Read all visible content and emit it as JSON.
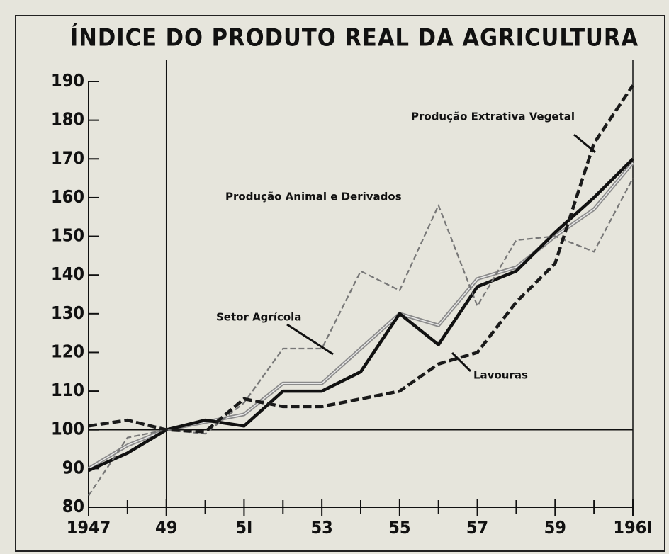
{
  "chart_data": {
    "type": "line",
    "title": "ÍNDICE DO PRODUTO REAL DA AGRICULTURA",
    "x": [
      1947,
      1948,
      1949,
      1950,
      1951,
      1952,
      1953,
      1954,
      1955,
      1956,
      1957,
      1958,
      1959,
      1960,
      1961
    ],
    "series": [
      {
        "name": "Setor Agrícola",
        "color": "#8a8a8a",
        "style": "double",
        "values": [
          90,
          96,
          100,
          102,
          104,
          112,
          112,
          121,
          130,
          127,
          139,
          142,
          150,
          157,
          169
        ]
      },
      {
        "name": "Lavouras",
        "color": "#111111",
        "style": "solid",
        "values": [
          89.5,
          94,
          100,
          102.5,
          101,
          110,
          110,
          115,
          130,
          122,
          137,
          141,
          151,
          160,
          170
        ]
      },
      {
        "name": "Produção Animal e Derivados",
        "color": "#777777",
        "style": "dashed-thin",
        "values": [
          83,
          98,
          100,
          99,
          107,
          121,
          121,
          141,
          136,
          158,
          132,
          149,
          150,
          146,
          165
        ]
      },
      {
        "name": "Produção Extrativa Vegetal",
        "color": "#1a1a1a",
        "style": "dashed-thick",
        "values": [
          101,
          102.5,
          100,
          99.5,
          108,
          106,
          106,
          108,
          110,
          117,
          120,
          133,
          143,
          174,
          189
        ]
      }
    ],
    "xlim": [
      1947,
      1961
    ],
    "ylim": [
      80,
      190
    ],
    "yticks": [
      80,
      90,
      100,
      110,
      120,
      130,
      140,
      150,
      160,
      170,
      180,
      190
    ],
    "xticks": [
      {
        "value": 1947,
        "label": "1947"
      },
      {
        "value": 1949,
        "label": "49"
      },
      {
        "value": 1951,
        "label": "5I"
      },
      {
        "value": 1953,
        "label": "53"
      },
      {
        "value": 1955,
        "label": "55"
      },
      {
        "value": 1957,
        "label": "57"
      },
      {
        "value": 1959,
        "label": "59"
      },
      {
        "value": 1961,
        "label": "196I"
      }
    ],
    "xminor_ticks": [
      1948,
      1950,
      1952,
      1954,
      1956,
      1958,
      1960
    ],
    "reference_x": 1949,
    "reference_y": 100
  }
}
